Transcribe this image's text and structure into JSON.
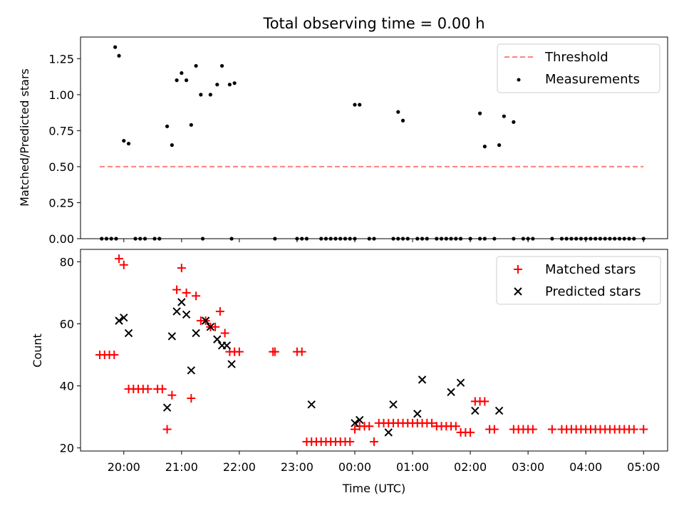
{
  "figure": {
    "title": "Total observing time = 0.00 h",
    "xlabel": "Time (UTC)"
  },
  "colors": {
    "threshold": "#ff8080",
    "measurement": "#000000",
    "matched": "#ff0000",
    "predicted": "#000000"
  },
  "chart_data": [
    {
      "type": "scatter",
      "title": "Total observing time = 0.00 h",
      "xlabel": "",
      "ylabel": "Matched/Predicted stars",
      "xlim": [
        "19:15",
        "05:25"
      ],
      "ylim": [
        0,
        1.4
      ],
      "y_ticks": [
        "0.00",
        "0.25",
        "0.50",
        "0.75",
        "1.00",
        "1.25"
      ],
      "legend": {
        "position": "top-right"
      },
      "series": [
        {
          "name": "Threshold",
          "kind": "dashed-line",
          "x": [
            "19:35",
            "05:00"
          ],
          "y": [
            0.5,
            0.5
          ]
        },
        {
          "name": "Measurements",
          "kind": "dots",
          "x": [
            "19:51",
            "19:55",
            "20:00",
            "20:05",
            "20:45",
            "20:50",
            "20:55",
            "21:00",
            "21:05",
            "21:10",
            "21:15",
            "21:20",
            "21:30",
            "21:37",
            "21:42",
            "21:50",
            "21:55",
            "00:00",
            "00:05",
            "00:45",
            "00:50",
            "02:10",
            "02:15",
            "02:30",
            "02:35",
            "02:45",
            "19:37",
            "19:42",
            "19:47",
            "19:52",
            "20:12",
            "20:17",
            "20:22",
            "20:32",
            "20:37",
            "21:22",
            "21:52",
            "22:37",
            "23:00",
            "23:05",
            "23:10",
            "23:25",
            "23:30",
            "23:35",
            "23:40",
            "23:45",
            "23:50",
            "23:55",
            "00:00",
            "00:15",
            "00:20",
            "00:40",
            "00:45",
            "00:50",
            "00:55",
            "01:05",
            "01:10",
            "01:15",
            "01:25",
            "01:30",
            "01:35",
            "01:40",
            "01:45",
            "01:50",
            "02:00",
            "02:10",
            "02:15",
            "02:25",
            "02:45",
            "02:55",
            "03:00",
            "03:05",
            "03:25",
            "03:35",
            "03:40",
            "03:45",
            "03:50",
            "03:55",
            "04:00",
            "04:05",
            "04:10",
            "04:15",
            "04:20",
            "04:25",
            "04:30",
            "04:35",
            "04:40",
            "04:45",
            "04:50",
            "05:00"
          ],
          "y": [
            1.33,
            1.27,
            0.68,
            0.66,
            0.78,
            0.65,
            1.1,
            1.15,
            1.1,
            0.79,
            1.2,
            1.0,
            1.0,
            1.07,
            1.2,
            1.07,
            1.08,
            0.93,
            0.93,
            0.88,
            0.82,
            0.87,
            0.64,
            0.65,
            0.85,
            0.81,
            0,
            0,
            0,
            0,
            0,
            0,
            0,
            0,
            0,
            0,
            0,
            0,
            0,
            0,
            0,
            0,
            0,
            0,
            0,
            0,
            0,
            0,
            0,
            0,
            0,
            0,
            0,
            0,
            0,
            0,
            0,
            0,
            0,
            0,
            0,
            0,
            0,
            0,
            0,
            0,
            0,
            0,
            0,
            0,
            0,
            0,
            0,
            0,
            0,
            0,
            0,
            0,
            0,
            0,
            0,
            0,
            0,
            0,
            0,
            0,
            0,
            0,
            0,
            0
          ]
        }
      ]
    },
    {
      "type": "scatter",
      "xlabel": "Time (UTC)",
      "ylabel": "Count",
      "xlim": [
        "19:15",
        "05:25"
      ],
      "ylim": [
        19,
        84
      ],
      "x_ticks": [
        "20:00",
        "21:00",
        "22:00",
        "23:00",
        "00:00",
        "01:00",
        "02:00",
        "03:00",
        "04:00",
        "05:00"
      ],
      "y_ticks": [
        "20",
        "40",
        "60",
        "80"
      ],
      "legend": {
        "position": "top-right"
      },
      "series": [
        {
          "name": "Matched stars",
          "marker": "+",
          "x": [
            "19:35",
            "19:40",
            "19:45",
            "19:50",
            "19:55",
            "20:00",
            "20:05",
            "20:10",
            "20:15",
            "20:20",
            "20:25",
            "20:35",
            "20:40",
            "20:45",
            "20:50",
            "20:55",
            "21:00",
            "21:05",
            "21:10",
            "21:15",
            "21:20",
            "21:25",
            "21:30",
            "21:35",
            "21:40",
            "21:45",
            "21:50",
            "21:55",
            "22:00",
            "22:35",
            "22:37",
            "23:00",
            "23:05",
            "23:10",
            "23:15",
            "23:20",
            "23:25",
            "23:30",
            "23:35",
            "23:40",
            "23:45",
            "23:50",
            "23:55",
            "00:00",
            "00:05",
            "00:10",
            "00:15",
            "00:20",
            "00:25",
            "00:30",
            "00:35",
            "00:40",
            "00:45",
            "00:50",
            "00:55",
            "01:00",
            "01:05",
            "01:10",
            "01:15",
            "01:20",
            "01:25",
            "01:30",
            "01:35",
            "01:40",
            "01:45",
            "01:50",
            "01:55",
            "02:00",
            "02:05",
            "02:10",
            "02:15",
            "02:20",
            "02:25",
            "02:45",
            "02:50",
            "02:55",
            "03:00",
            "03:05",
            "03:25",
            "03:35",
            "03:40",
            "03:45",
            "03:50",
            "03:55",
            "04:00",
            "04:05",
            "04:10",
            "04:15",
            "04:20",
            "04:25",
            "04:30",
            "04:35",
            "04:40",
            "04:45",
            "04:50",
            "05:00"
          ],
          "y": [
            50,
            50,
            50,
            50,
            81,
            79,
            39,
            39,
            39,
            39,
            39,
            39,
            39,
            26,
            37,
            71,
            78,
            70,
            36,
            69,
            61,
            61,
            59,
            59,
            64,
            57,
            51,
            51,
            51,
            51,
            51,
            51,
            51,
            22,
            22,
            22,
            22,
            22,
            22,
            22,
            22,
            22,
            22,
            26,
            27,
            27,
            27,
            22,
            28,
            28,
            28,
            28,
            28,
            28,
            28,
            28,
            28,
            28,
            28,
            28,
            27,
            27,
            27,
            27,
            27,
            25,
            25,
            25,
            35,
            35,
            35,
            26,
            26,
            26,
            26,
            26,
            26,
            26,
            26,
            26,
            26,
            26,
            26,
            26,
            26,
            26,
            26,
            26,
            26,
            26,
            26,
            26,
            26,
            26,
            26,
            26
          ]
        },
        {
          "name": "Predicted stars",
          "marker": "x",
          "x": [
            "19:55",
            "20:00",
            "20:05",
            "20:45",
            "20:50",
            "20:55",
            "21:00",
            "21:05",
            "21:10",
            "21:15",
            "21:25",
            "21:30",
            "21:37",
            "21:42",
            "21:47",
            "21:52",
            "23:15",
            "00:00",
            "00:05",
            "00:35",
            "00:40",
            "01:05",
            "01:10",
            "01:40",
            "01:50",
            "02:05",
            "02:30"
          ],
          "y": [
            61,
            62,
            57,
            33,
            56,
            64,
            67,
            63,
            45,
            57,
            61,
            59,
            55,
            53,
            53,
            47,
            34,
            28,
            29,
            25,
            34,
            31,
            42,
            38,
            41,
            32,
            32
          ]
        }
      ]
    }
  ]
}
